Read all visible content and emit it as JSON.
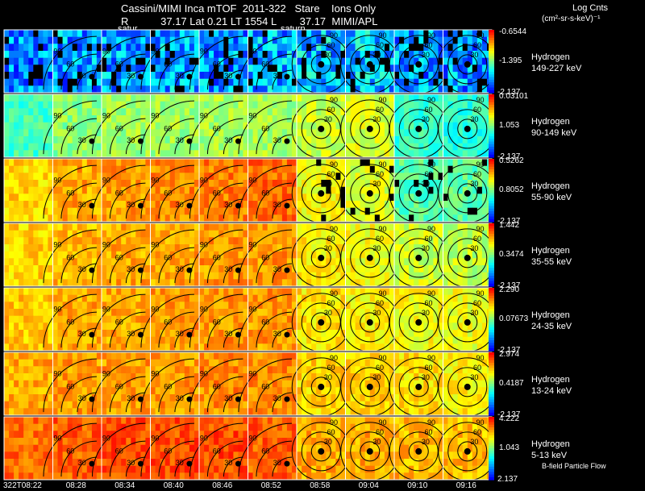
{
  "header": {
    "line1": "Cassini/MIMI Inca mTOF  2011-322   Stare    Ions Only",
    "line2": "R           37.17 Lat 0.21 LT 1554 L        37.17  MIMI/APL",
    "saturn_labels": [
      "satur",
      "saturn"
    ],
    "colorbar_title": "Log Cnts",
    "colorbar_units": "(cm²-sr-s-keV)⁻¹"
  },
  "footer_note": "B-field Particle Flow",
  "colors": {
    "background": "#000000",
    "grid": "#ffffff",
    "contour": "#000000",
    "colormap": [
      "#0000ff",
      "#0080ff",
      "#00ffff",
      "#80ff80",
      "#ffff00",
      "#ff8000",
      "#ff0000"
    ]
  },
  "chart_data": {
    "type": "heatmap",
    "title": "Cassini/MIMI Inca mTOF  2011-322   Stare    Ions Only",
    "time_labels": [
      "322T08:22",
      "08:28",
      "08:34",
      "08:40",
      "08:46",
      "08:52",
      "08:58",
      "09:04",
      "09:10",
      "09:16"
    ],
    "panels": [
      {
        "species": "Hydrogen",
        "energy": "149-227 keV",
        "cmax": "-0.6544",
        "cmid": "-1.395",
        "cmin": "-2.137",
        "intensity": [
          0.18,
          0.2,
          0.22,
          0.22,
          0.2,
          0.22,
          0.25,
          0.25,
          0.2,
          0.2
        ]
      },
      {
        "species": "Hydrogen",
        "energy": "90-149 keV",
        "cmax": "0.03101",
        "cmid": "1.053",
        "cmin": "-2.137",
        "intensity": [
          0.42,
          0.52,
          0.54,
          0.54,
          0.55,
          0.55,
          0.6,
          0.62,
          0.4,
          0.38
        ]
      },
      {
        "species": "Hydrogen",
        "energy": "55-90 keV",
        "cmax": "0.5262",
        "cmid": "0.8052",
        "cmin": "-2.137",
        "intensity": [
          0.72,
          0.78,
          0.8,
          0.82,
          0.84,
          0.86,
          0.66,
          0.62,
          0.45,
          0.46
        ]
      },
      {
        "species": "Hydrogen",
        "energy": "35-55 keV",
        "cmax": "1.442",
        "cmid": "0.3474",
        "cmin": "-2.137",
        "intensity": [
          0.72,
          0.76,
          0.78,
          0.78,
          0.8,
          0.8,
          0.68,
          0.66,
          0.6,
          0.58
        ]
      },
      {
        "species": "Hydrogen",
        "energy": "24-35 keV",
        "cmax": "2.290",
        "cmid": "0.07673",
        "cmin": "-2.137",
        "intensity": [
          0.74,
          0.78,
          0.78,
          0.8,
          0.8,
          0.8,
          0.7,
          0.68,
          0.66,
          0.64
        ]
      },
      {
        "species": "Hydrogen",
        "energy": "13-24 keV",
        "cmax": "2.974",
        "cmid": "0.4187",
        "cmin": "-2.137",
        "intensity": [
          0.78,
          0.8,
          0.8,
          0.8,
          0.82,
          0.82,
          0.72,
          0.72,
          0.7,
          0.68
        ]
      },
      {
        "species": "Hydrogen",
        "energy": "5-13 keV",
        "cmax": "4.222",
        "cmid": "1.043",
        "cmin": "2.137",
        "intensity": [
          0.86,
          0.88,
          0.9,
          0.9,
          0.9,
          0.88,
          0.78,
          0.78,
          0.76,
          0.75
        ]
      }
    ],
    "contour_labels": [
      "90",
      "60",
      "30"
    ]
  }
}
